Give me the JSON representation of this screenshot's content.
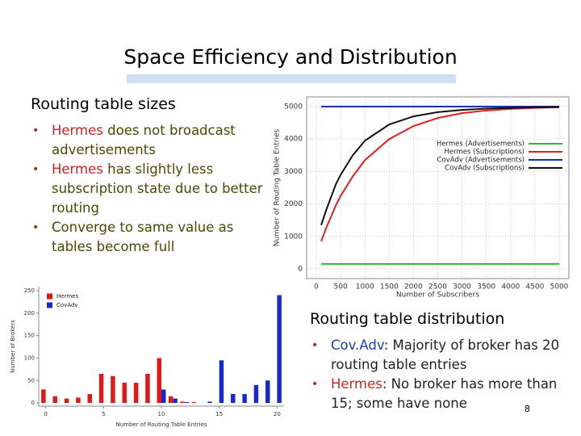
{
  "title": "Space Efficiency and Distribution",
  "sections": [
    {
      "heading": "Routing table sizes",
      "bullets": [
        {
          "lead": "Hermes",
          "rest": " does not broadcast advertisements"
        },
        {
          "lead": "Hermes",
          "rest": " has slightly less subscription state due to better routing"
        },
        {
          "text": "Converge to same value as tables become full"
        }
      ]
    },
    {
      "heading": "Routing table distribution",
      "bullets": [
        {
          "lead": "Cov.Adv",
          "rest": ": Majority of broker has 20 routing table entries"
        },
        {
          "lead": "Hermes",
          "rest": ": No broker has more than 15; some have none"
        }
      ]
    }
  ],
  "page_number": "8",
  "chart_data": [
    {
      "type": "line",
      "x_label": "Number of Subscribers",
      "y_label": "Number of Routing Table Entries",
      "x": [
        100,
        200,
        300,
        400,
        500,
        750,
        1000,
        1500,
        2000,
        2500,
        3000,
        3500,
        4000,
        4500,
        5000
      ],
      "series": [
        {
          "name": "Hermes (Advertisements)",
          "color": "#2fb82f",
          "values": [
            150,
            150,
            150,
            150,
            150,
            150,
            150,
            150,
            150,
            150,
            150,
            150,
            150,
            150,
            150
          ]
        },
        {
          "name": "Hermes (Subscriptions)",
          "color": "#e02020",
          "values": [
            850,
            1250,
            1600,
            1950,
            2250,
            2850,
            3350,
            4000,
            4400,
            4650,
            4800,
            4880,
            4930,
            4960,
            4980
          ]
        },
        {
          "name": "CovAdv (Advertisements)",
          "color": "#1a2fb0",
          "values": [
            5000,
            5000,
            5000,
            5000,
            5000,
            5000,
            5000,
            5000,
            5000,
            5000,
            5000,
            5000,
            5000,
            5000,
            5000
          ]
        },
        {
          "name": "CovAdv (Subscriptions)",
          "color": "#111111",
          "values": [
            1350,
            1800,
            2200,
            2600,
            2900,
            3500,
            3950,
            4450,
            4700,
            4830,
            4900,
            4940,
            4960,
            4980,
            4990
          ]
        }
      ],
      "xlim": [
        -200,
        5200
      ],
      "ylim": [
        -300,
        5300
      ],
      "xticks": [
        0,
        500,
        1000,
        1500,
        2000,
        2500,
        3000,
        3500,
        4000,
        4500,
        5000
      ],
      "yticks": [
        0,
        1000,
        2000,
        3000,
        4000,
        5000
      ],
      "grid": true,
      "legend": "right"
    },
    {
      "type": "bar",
      "x_label": "Number of Routing Table Entries",
      "y_label": "Number of Brokers",
      "x": [
        0,
        1,
        2,
        3,
        4,
        5,
        6,
        7,
        8,
        9,
        10,
        11,
        12,
        13,
        14,
        15,
        16,
        17,
        18,
        19,
        20
      ],
      "series": [
        {
          "name": "Hermes",
          "color": "#e01818",
          "values": [
            30,
            15,
            10,
            12,
            20,
            65,
            60,
            45,
            45,
            65,
            100,
            15,
            3,
            2,
            0,
            0,
            0,
            0,
            0,
            0,
            0
          ]
        },
        {
          "name": "CovAdv",
          "color": "#1828d0",
          "values": [
            0,
            0,
            0,
            0,
            0,
            0,
            0,
            0,
            0,
            0,
            30,
            10,
            2,
            0,
            3,
            95,
            20,
            20,
            40,
            50,
            240
          ]
        }
      ],
      "xlim": [
        -0.6,
        20.6
      ],
      "ylim": [
        -7,
        259
      ],
      "xticks": [
        0,
        5,
        10,
        15,
        20
      ],
      "yticks": [
        0,
        50,
        100,
        150,
        200,
        250
      ],
      "grid": false,
      "legend": "top-left"
    }
  ]
}
